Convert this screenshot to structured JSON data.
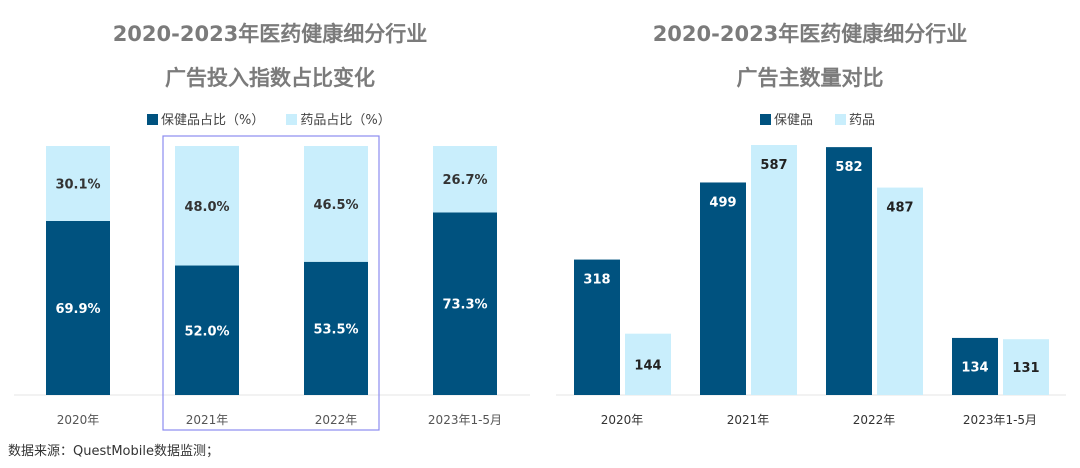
{
  "colors": {
    "health_products": "#00527f",
    "drugs": "#c9eefc",
    "highlight_box": "#8c8cf0"
  },
  "chart_data": [
    {
      "type": "bar",
      "stacked": true,
      "percent": true,
      "title_line1": "2020-2023年医药健康细分行业",
      "title_line2": "广告投入指数占比变化",
      "categories": [
        "2020年",
        "2021年",
        "2022年",
        "2023年1-5月"
      ],
      "series": [
        {
          "name": "保健品占比（%）",
          "values": [
            69.9,
            52.0,
            53.5,
            73.3
          ]
        },
        {
          "name": "药品占比（%）",
          "values": [
            30.1,
            48.0,
            46.5,
            26.7
          ]
        }
      ],
      "legend": "top",
      "highlighted_categories": [
        "2021年",
        "2022年"
      ],
      "ylim": [
        0,
        100
      ]
    },
    {
      "type": "bar",
      "stacked": false,
      "title_line1": "2020-2023年医药健康细分行业",
      "title_line2": "广告主数量对比",
      "categories": [
        "2020年",
        "2021年",
        "2022年",
        "2023年1-5月"
      ],
      "series": [
        {
          "name": "保健品",
          "values": [
            318,
            499,
            582,
            134
          ]
        },
        {
          "name": "药品",
          "values": [
            144,
            587,
            487,
            131
          ]
        }
      ],
      "legend": "top",
      "ylim": [
        0,
        587
      ]
    }
  ],
  "source": "数据来源：QuestMobile数据监测；"
}
